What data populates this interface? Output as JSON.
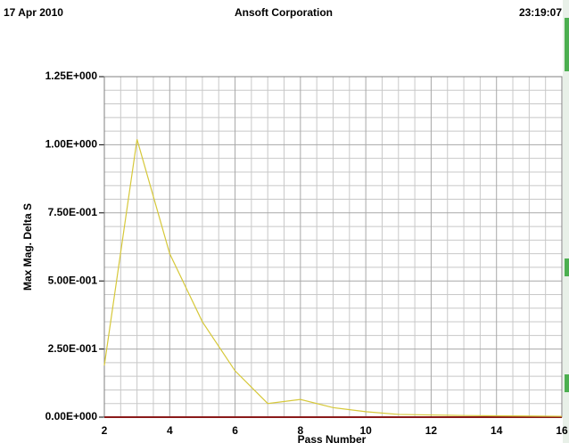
{
  "header": {
    "date": "17 Apr 2010",
    "company": "Ansoft Corporation",
    "time": "23:19:07"
  },
  "chart_data": {
    "type": "line",
    "x_label": "Pass Number",
    "y_label": "Max Mag. Delta S",
    "x": [
      2,
      3,
      4,
      5,
      6,
      7,
      8,
      9,
      10,
      11,
      12,
      13,
      14,
      15,
      16
    ],
    "values": [
      0.19,
      1.02,
      0.6,
      0.35,
      0.17,
      0.05,
      0.065,
      0.035,
      0.02,
      0.01,
      0.008,
      0.006,
      0.005,
      0.004,
      0.003
    ],
    "color": "#d6c83a",
    "xlim": [
      2,
      16
    ],
    "xticks": [
      2,
      4,
      6,
      8,
      10,
      12,
      14,
      16
    ],
    "ylim": [
      0,
      1.25
    ],
    "yticks": [
      {
        "value": 0,
        "label": "0.00E+000"
      },
      {
        "value": 0.25,
        "label": "2.50E-001"
      },
      {
        "value": 0.5,
        "label": "5.00E-001"
      },
      {
        "value": 0.75,
        "label": "7.50E-001"
      },
      {
        "value": 1,
        "label": "1.00E+000"
      },
      {
        "value": 1.25,
        "label": "1.25E+000"
      }
    ],
    "grid": true
  }
}
